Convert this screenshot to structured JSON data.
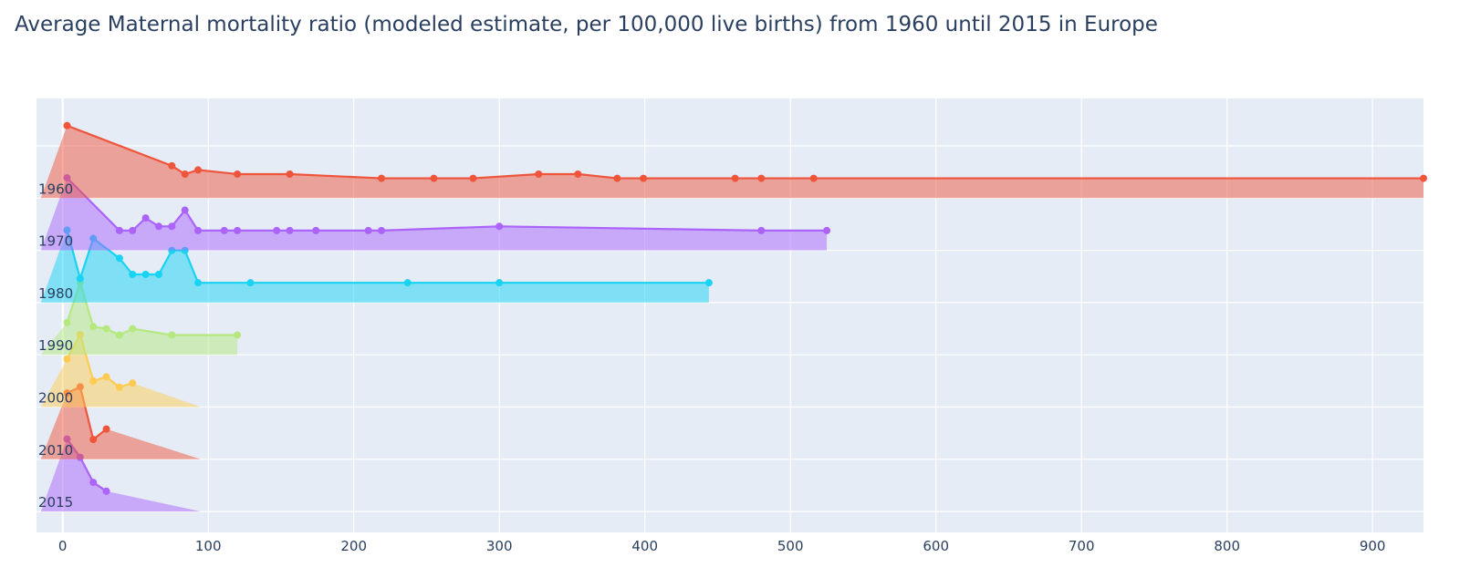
{
  "chart_data": {
    "type": "line",
    "title": "Average Maternal mortality ratio (modeled estimate, per 100,000 live births) from 1960 until 2015 in Europe",
    "xlabel": "",
    "ylabel": "",
    "xlim": [
      -18,
      935
    ],
    "x_ticks": [
      0,
      100,
      200,
      300,
      400,
      500,
      600,
      700,
      800,
      900
    ],
    "x_tick_labels": [
      "0",
      "100",
      "200",
      "300",
      "400",
      "500",
      "600",
      "700",
      "800",
      "900"
    ],
    "grid": true,
    "legend": "none",
    "categories": [
      "1960",
      "1970",
      "1980",
      "1990",
      "2000",
      "2010",
      "2015"
    ],
    "series": [
      {
        "color": "#EF553B",
        "fill": "#EF553B",
        "x": [
          3,
          75,
          84,
          93,
          120,
          156,
          219,
          255,
          282,
          327,
          354,
          381,
          399,
          462,
          480,
          516,
          935
        ],
        "y": [
          1.39,
          0.62,
          0.46,
          0.54,
          0.46,
          0.46,
          0.38,
          0.38,
          0.38,
          0.46,
          0.46,
          0.38,
          0.38,
          0.38,
          0.38,
          0.38,
          0.38
        ]
      },
      {
        "color": "#AB63FA",
        "fill": "#AB63FA",
        "x": [
          3,
          39,
          48,
          57,
          66,
          75,
          84,
          93,
          111,
          120,
          147,
          156,
          174,
          210,
          219,
          300,
          480,
          525
        ],
        "y": [
          1.39,
          0.38,
          0.38,
          0.62,
          0.46,
          0.46,
          0.77,
          0.38,
          0.38,
          0.38,
          0.38,
          0.38,
          0.38,
          0.38,
          0.38,
          0.46,
          0.38,
          0.38
        ]
      },
      {
        "color": "#19D3F3",
        "fill": "#19D3F3",
        "x": [
          3,
          12,
          21,
          39,
          48,
          57,
          66,
          75,
          84,
          93,
          129,
          237,
          300,
          444
        ],
        "y": [
          1.39,
          0.46,
          1.23,
          0.85,
          0.54,
          0.54,
          0.54,
          1.0,
          1.0,
          0.38,
          0.38,
          0.38,
          0.38,
          0.38
        ]
      },
      {
        "color": "#B6E880",
        "fill": "#B6E880",
        "x": [
          3,
          12,
          21,
          30,
          39,
          48,
          75,
          120
        ],
        "y": [
          0.62,
          1.39,
          0.54,
          0.5,
          0.38,
          0.5,
          0.38,
          0.38
        ]
      },
      {
        "color": "#FECB52",
        "fill": "#FECB52",
        "x": [
          3,
          12,
          21,
          30,
          39,
          48
        ],
        "y": [
          0.92,
          1.39,
          0.5,
          0.58,
          0.38,
          0.46
        ]
      },
      {
        "color": "#EF553B",
        "fill": "#EF553B",
        "x": [
          3,
          12,
          21,
          30
        ],
        "y": [
          1.27,
          1.39,
          0.38,
          0.58
        ]
      },
      {
        "color": "#AB63FA",
        "fill": "#AB63FA",
        "x": [
          3,
          12,
          21,
          30
        ],
        "y": [
          1.39,
          1.04,
          0.56,
          0.39
        ]
      }
    ]
  }
}
